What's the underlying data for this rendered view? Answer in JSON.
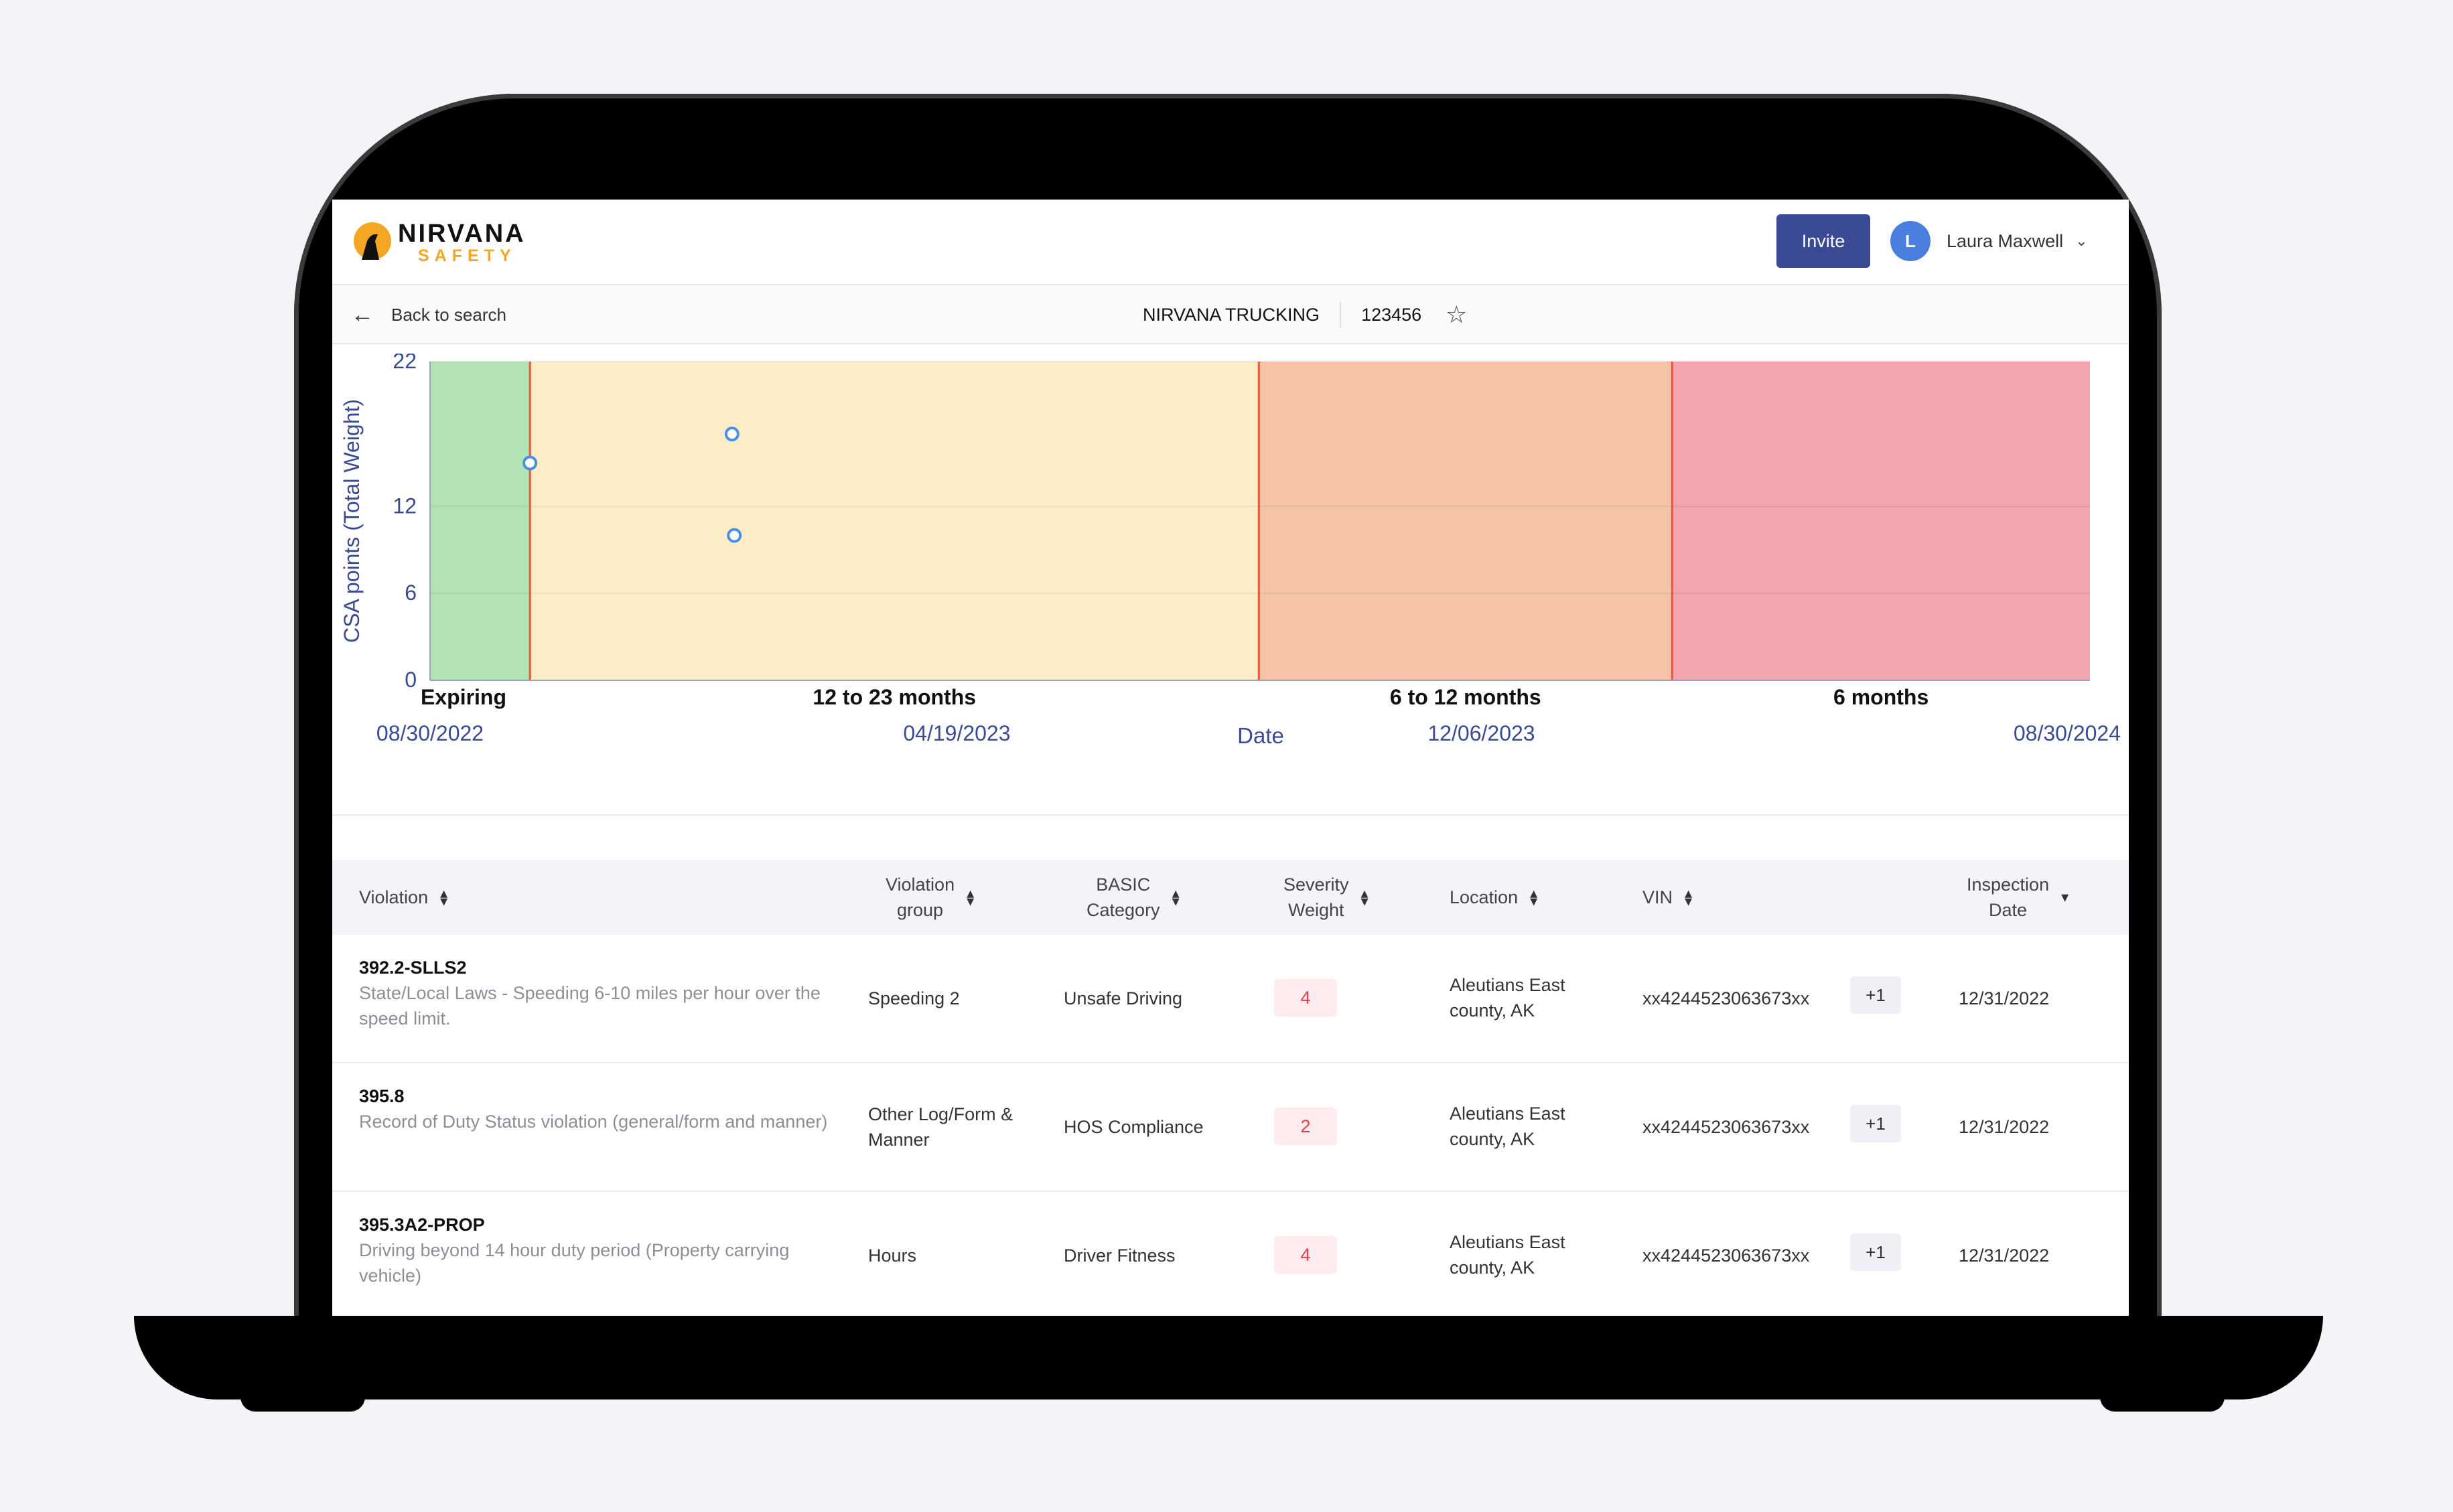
{
  "brand": {
    "name": "NIRVANA",
    "sub": "SAFETY"
  },
  "header": {
    "invite_label": "Invite",
    "avatar_initial": "L",
    "user_name": "Laura Maxwell"
  },
  "subbar": {
    "back_label": "Back to search",
    "carrier_name": "NIRVANA TRUCKING",
    "carrier_id": "123456"
  },
  "colors": {
    "expiring": "#b3e3b4",
    "months_12_23": "#fdedc6",
    "months_6_12": "#f5c4a7",
    "months_6": "#f2a5ac",
    "divider": "#e8553d",
    "point": "#4a90e2",
    "axis_text": "#3a4a94",
    "button": "#3a4a94"
  },
  "chart_data": {
    "type": "scatter",
    "ylabel": "CSA points (Total Weight)",
    "xlabel": "Date",
    "y_ticks": [
      "0",
      "6",
      "12",
      "22"
    ],
    "ylim": [
      0,
      22
    ],
    "x_tick_labels": [
      "08/30/2022",
      "04/19/2023",
      "12/06/2023",
      "08/30/2024"
    ],
    "xlim": [
      "08/30/2022",
      "08/30/2024"
    ],
    "grid": true,
    "bands": [
      {
        "label": "Expiring",
        "from": "08/30/2022",
        "to": "10/13/2022",
        "color_key": "expiring"
      },
      {
        "label": "12 to 23 months",
        "from": "10/13/2022",
        "to": "08/30/2023",
        "color_key": "months_12_23"
      },
      {
        "label": "6 to 12 months",
        "from": "08/30/2023",
        "to": "02/28/2024",
        "color_key": "months_6_12"
      },
      {
        "label": "6 months",
        "from": "02/28/2024",
        "to": "08/30/2024",
        "color_key": "months_6"
      }
    ],
    "points": [
      {
        "x": "10/13/2022",
        "y": 15
      },
      {
        "x": "01/10/2023",
        "y": 17
      },
      {
        "x": "01/11/2023",
        "y": 10
      }
    ]
  },
  "table": {
    "headers": [
      {
        "label": "Violation"
      },
      {
        "label": "Violation\ngroup"
      },
      {
        "label": "BASIC\nCategory"
      },
      {
        "label": "Severity\nWeight"
      },
      {
        "label": "Location"
      },
      {
        "label": "VIN"
      },
      {
        "label": "Inspection\nDate"
      }
    ],
    "rows": [
      {
        "code": "392.2-SLLS2",
        "description": "State/Local Laws - Speeding 6-10 miles per hour over the speed limit.",
        "group": "Speeding 2",
        "basic": "Unsafe Driving",
        "severity": "4",
        "location": "Aleutians East county, AK",
        "vin": "xx4244523063673xx",
        "vin_extra": "+1",
        "date": "12/31/2022"
      },
      {
        "code": "395.8",
        "description": "Record of Duty Status violation (general/form and manner)",
        "group": "Other Log/Form & Manner",
        "basic": "HOS Compliance",
        "severity": "2",
        "location": "Aleutians East county, AK",
        "vin": "xx4244523063673xx",
        "vin_extra": "+1",
        "date": "12/31/2022"
      },
      {
        "code": "395.3A2-PROP",
        "description": "Driving beyond 14 hour duty period (Property carrying vehicle)",
        "group": "Hours",
        "basic": "Driver Fitness",
        "severity": "4",
        "location": "Aleutians East county, AK",
        "vin": "xx4244523063673xx",
        "vin_extra": "+1",
        "date": "12/31/2022"
      }
    ]
  }
}
